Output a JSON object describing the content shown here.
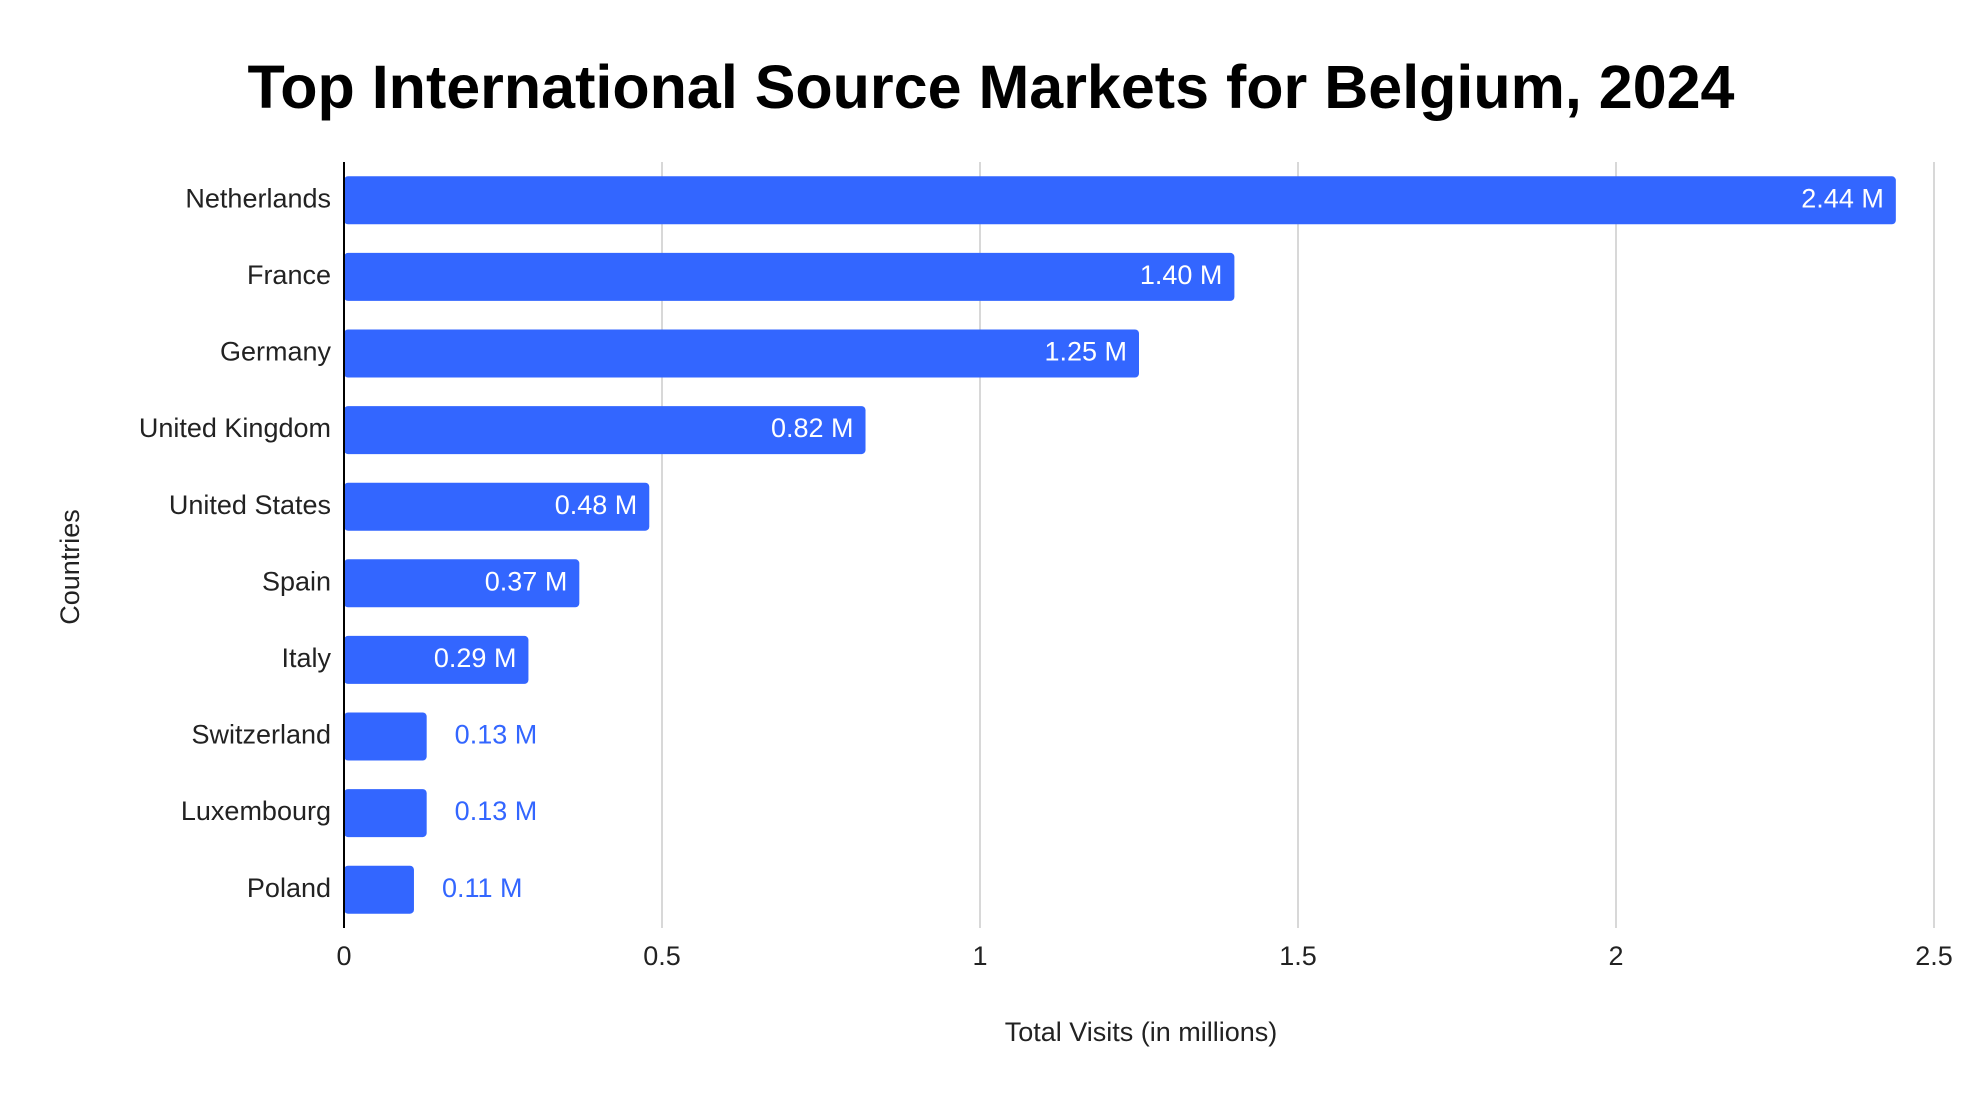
{
  "chart_data": {
    "type": "bar",
    "orientation": "horizontal",
    "title": "Top International Source Markets for Belgium, 2024",
    "xlabel": "Total Visits (in millions)",
    "ylabel": "Countries",
    "categories": [
      "Netherlands",
      "France",
      "Germany",
      "United Kingdom",
      "United States",
      "Spain",
      "Italy",
      "Switzerland",
      "Luxembourg",
      "Poland"
    ],
    "values": [
      2.44,
      1.4,
      1.25,
      0.82,
      0.48,
      0.37,
      0.29,
      0.13,
      0.13,
      0.11
    ],
    "data_labels": [
      "2.44 M",
      "1.40 M",
      "1.25 M",
      "0.82 M",
      "0.48 M",
      "0.37 M",
      "0.29 M",
      "0.13 M",
      "0.13 M",
      "0.11 M"
    ],
    "xlim": [
      0,
      2.5
    ],
    "xticks": [
      0,
      0.5,
      1,
      1.5,
      2,
      2.5
    ],
    "xtick_labels": [
      "0",
      "0.5",
      "1",
      "1.5",
      "2",
      "2.5"
    ],
    "grid": true,
    "legend": "none",
    "colors": {
      "bar": "#3366ff",
      "label_inside": "#ffffff",
      "label_outside": "#3366ff",
      "gridline": "#cccccc",
      "axis": "#000000"
    }
  }
}
